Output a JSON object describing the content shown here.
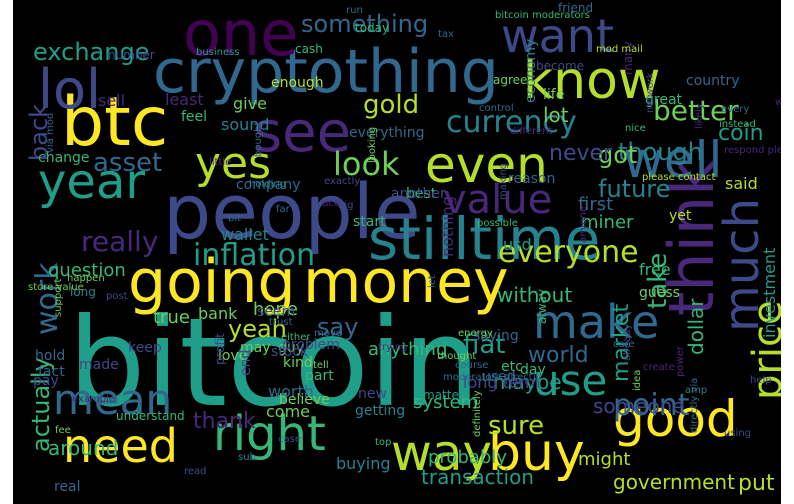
{
  "palette": {
    "yellow": "#fde725",
    "yellowgreen": "#b5de2b",
    "green": "#6ece58",
    "seagreen": "#35b779",
    "teal": "#1f9e89",
    "cyan": "#26828e",
    "steel": "#31688e",
    "indigo": "#3e4989",
    "violet": "#482878",
    "purple": "#440154",
    "background": "#000000"
  },
  "words": [
    {
      "text": "bitcoin",
      "color": "teal"
    },
    {
      "text": "people",
      "color": "indigo"
    },
    {
      "text": "btc",
      "color": "yellow"
    },
    {
      "text": "cryptothing",
      "color": "steel"
    },
    {
      "text": "one",
      "color": "purple"
    },
    {
      "text": "think",
      "color": "violet"
    },
    {
      "text": "going",
      "color": "yellow"
    },
    {
      "text": "money",
      "color": "yellow"
    },
    {
      "text": "stilltime",
      "color": "cyan"
    },
    {
      "text": "lol",
      "color": "indigo"
    },
    {
      "text": "see",
      "color": "violet"
    },
    {
      "text": "know",
      "color": "yellowgreen"
    },
    {
      "text": "year",
      "color": "teal"
    },
    {
      "text": "even",
      "color": "yellowgreen"
    },
    {
      "text": "well",
      "color": "steel"
    },
    {
      "text": "want",
      "color": "indigo"
    },
    {
      "text": "much",
      "color": "indigo"
    },
    {
      "text": "make",
      "color": "steel"
    },
    {
      "text": "good",
      "color": "yellow"
    },
    {
      "text": "need",
      "color": "yellow"
    },
    {
      "text": "buy",
      "color": "yellow"
    },
    {
      "text": "way",
      "color": "yellowgreen"
    },
    {
      "text": "right",
      "color": "seagreen"
    },
    {
      "text": "mean",
      "color": "steel"
    },
    {
      "text": "use",
      "color": "teal"
    },
    {
      "text": "value",
      "color": "violet"
    },
    {
      "text": "yes",
      "color": "yellowgreen"
    },
    {
      "text": "price",
      "color": "yellowgreen"
    },
    {
      "text": "currency",
      "color": "cyan"
    },
    {
      "text": "inflation",
      "color": "teal"
    },
    {
      "text": "look",
      "color": "green"
    },
    {
      "text": "gold",
      "color": "yellowgreen"
    },
    {
      "text": "exchange",
      "color": "teal"
    },
    {
      "text": "something",
      "color": "steel"
    },
    {
      "text": "better",
      "color": "green"
    },
    {
      "text": "though",
      "color": "cyan"
    },
    {
      "text": "coin",
      "color": "teal"
    },
    {
      "text": "future",
      "color": "cyan"
    },
    {
      "text": "got",
      "color": "green"
    },
    {
      "text": "never",
      "color": "indigo"
    },
    {
      "text": "lot",
      "color": "green"
    },
    {
      "text": "really",
      "color": "violet"
    },
    {
      "text": "asset",
      "color": "steel"
    },
    {
      "text": "back",
      "color": "indigo"
    },
    {
      "text": "work",
      "color": "steel"
    },
    {
      "text": "say",
      "color": "steel"
    },
    {
      "text": "everyone",
      "color": "yellowgreen"
    },
    {
      "text": "take",
      "color": "seagreen"
    },
    {
      "text": "market",
      "color": "teal"
    },
    {
      "text": "dollar",
      "color": "seagreen"
    },
    {
      "text": "world",
      "color": "steel"
    },
    {
      "text": "point",
      "color": "steel"
    },
    {
      "text": "sure",
      "color": "yellowgreen"
    },
    {
      "text": "fiat",
      "color": "teal"
    },
    {
      "text": "actually",
      "color": "seagreen"
    },
    {
      "text": "thank",
      "color": "violet"
    },
    {
      "text": "yeah",
      "color": "yellowgreen"
    },
    {
      "text": "someone",
      "color": "indigo"
    },
    {
      "text": "put",
      "color": "yellowgreen"
    },
    {
      "text": "government",
      "color": "yellowgreen"
    },
    {
      "text": "transaction",
      "color": "teal"
    },
    {
      "text": "probably",
      "color": "seagreen"
    },
    {
      "text": "might",
      "color": "yellowgreen"
    },
    {
      "text": "question",
      "color": "seagreen"
    },
    {
      "text": "hope",
      "color": "green"
    },
    {
      "text": "anything",
      "color": "seagreen"
    },
    {
      "text": "maybe",
      "color": "teal"
    },
    {
      "text": "around",
      "color": "seagreen"
    },
    {
      "text": "without",
      "color": "seagreen"
    },
    {
      "text": "true",
      "color": "green"
    },
    {
      "text": "bank",
      "color": "green"
    },
    {
      "text": "said",
      "color": "yellowgreen"
    },
    {
      "text": "first",
      "color": "steel"
    },
    {
      "text": "miner",
      "color": "seagreen"
    },
    {
      "text": "nothing",
      "color": "violet"
    },
    {
      "text": "usd",
      "color": "teal"
    },
    {
      "text": "wallet",
      "color": "cyan"
    },
    {
      "text": "system",
      "color": "seagreen"
    },
    {
      "text": "long term",
      "color": "indigo"
    },
    {
      "text": "investment",
      "color": "teal"
    },
    {
      "text": "free",
      "color": "seagreen"
    },
    {
      "text": "guess",
      "color": "green"
    },
    {
      "text": "buying",
      "color": "cyan"
    },
    {
      "text": "come",
      "color": "green"
    },
    {
      "text": "worth",
      "color": "steel"
    },
    {
      "text": "love",
      "color": "green"
    },
    {
      "text": "yet",
      "color": "yellowgreen"
    },
    {
      "text": "sell",
      "color": "violet"
    },
    {
      "text": "least",
      "color": "violet"
    },
    {
      "text": "give",
      "color": "green"
    },
    {
      "text": "enough",
      "color": "yellowgreen"
    },
    {
      "text": "agree",
      "color": "green"
    },
    {
      "text": "life",
      "color": "green"
    },
    {
      "text": "economy",
      "color": "cyan"
    },
    {
      "text": "great",
      "color": "seagreen"
    },
    {
      "text": "sound",
      "color": "cyan"
    },
    {
      "text": "feel",
      "color": "seagreen"
    },
    {
      "text": "change",
      "color": "seagreen"
    },
    {
      "text": "cash",
      "color": "seagreen"
    },
    {
      "text": "best",
      "color": "seagreen"
    },
    {
      "text": "company",
      "color": "steel"
    },
    {
      "text": "everything",
      "color": "steel"
    },
    {
      "text": "reason",
      "color": "steel"
    },
    {
      "text": "another",
      "color": "indigo"
    },
    {
      "text": "start",
      "color": "seagreen"
    },
    {
      "text": "country",
      "color": "steel"
    },
    {
      "text": "pay",
      "color": "indigo"
    },
    {
      "text": "hold",
      "color": "steel"
    },
    {
      "text": "fact",
      "color": "steel"
    },
    {
      "text": "used",
      "color": "steel"
    },
    {
      "text": "saying",
      "color": "steel"
    },
    {
      "text": "day",
      "color": "seagreen"
    },
    {
      "text": "etc",
      "color": "seagreen"
    },
    {
      "text": "alway",
      "color": "seagreen"
    },
    {
      "text": "part",
      "color": "seagreen"
    },
    {
      "text": "kind",
      "color": "green"
    },
    {
      "text": "guy",
      "color": "green"
    },
    {
      "text": "may",
      "color": "green"
    },
    {
      "text": "seem",
      "color": "indigo"
    },
    {
      "text": "keep",
      "color": "indigo"
    },
    {
      "text": "made",
      "color": "indigo"
    },
    {
      "text": "stock",
      "color": "indigo"
    },
    {
      "text": "end",
      "color": "indigo"
    },
    {
      "text": "problem",
      "color": "indigo"
    },
    {
      "text": "believe",
      "color": "green"
    },
    {
      "text": "understand",
      "color": "seagreen"
    },
    {
      "text": "getting",
      "color": "cyan"
    },
    {
      "text": "new",
      "color": "indigo"
    },
    {
      "text": "real",
      "color": "steel"
    },
    {
      "text": "matter",
      "color": "teal"
    },
    {
      "text": "profit",
      "color": "indigo"
    },
    {
      "text": "long",
      "color": "cyan"
    },
    {
      "text": "number",
      "color": "indigo"
    },
    {
      "text": "become",
      "color": "indigo"
    },
    {
      "text": "many",
      "color": "violet"
    },
    {
      "text": "today",
      "color": "seagreen"
    },
    {
      "text": "run",
      "color": "steel"
    },
    {
      "text": "tax",
      "color": "steel"
    },
    {
      "text": "friend",
      "color": "steel"
    },
    {
      "text": "business",
      "color": "teal"
    },
    {
      "text": "bitcoin moderators",
      "color": "seagreen"
    },
    {
      "text": "mod mail",
      "color": "yellowgreen"
    },
    {
      "text": "every",
      "color": "steel"
    },
    {
      "text": "instead",
      "color": "seagreen"
    },
    {
      "text": "network",
      "color": "indigo"
    },
    {
      "text": "different",
      "color": "violet"
    },
    {
      "text": "respond please",
      "color": "violet"
    },
    {
      "text": "please contact",
      "color": "yellowgreen"
    },
    {
      "text": "likely",
      "color": "violet"
    },
    {
      "text": "nice",
      "color": "seagreen"
    },
    {
      "text": "via mod",
      "color": "steel"
    },
    {
      "text": "little",
      "color": "violet"
    },
    {
      "text": "holding",
      "color": "cyan"
    },
    {
      "text": "bought",
      "color": "steel"
    },
    {
      "text": "dca",
      "color": "violet"
    },
    {
      "text": "looking",
      "color": "green"
    },
    {
      "text": "control",
      "color": "steel"
    },
    {
      "text": "making",
      "color": "indigo"
    },
    {
      "text": "exactly",
      "color": "indigo"
    },
    {
      "text": "big",
      "color": "indigo"
    },
    {
      "text": "store value",
      "color": "green"
    },
    {
      "text": "bit",
      "color": "steel"
    },
    {
      "text": "far",
      "color": "steel"
    },
    {
      "text": "possible",
      "color": "seagreen"
    },
    {
      "text": "let",
      "color": "steel"
    },
    {
      "text": "anyone",
      "color": "violet"
    },
    {
      "text": "already",
      "color": "indigo"
    },
    {
      "text": "happen",
      "color": "green"
    },
    {
      "text": "post",
      "color": "indigo"
    },
    {
      "text": "trust",
      "color": "steel"
    },
    {
      "text": "energy",
      "color": "green"
    },
    {
      "text": "care",
      "color": "steel"
    },
    {
      "text": "either",
      "color": "seagreen"
    },
    {
      "text": "tell",
      "color": "green"
    },
    {
      "text": "thought",
      "color": "green"
    },
    {
      "text": "idea",
      "color": "green"
    },
    {
      "text": "move",
      "color": "steel"
    },
    {
      "text": "trying",
      "color": "violet"
    },
    {
      "text": "course",
      "color": "steel"
    },
    {
      "text": "create",
      "color": "violet"
    },
    {
      "text": "support",
      "color": "green"
    },
    {
      "text": "moderators directly",
      "color": "steel"
    },
    {
      "text": "man",
      "color": "indigo"
    },
    {
      "text": "amp",
      "color": "cyan"
    },
    {
      "text": "power",
      "color": "violet"
    },
    {
      "text": "help",
      "color": "indigo"
    },
    {
      "text": "directly via",
      "color": "steel"
    },
    {
      "text": "using",
      "color": "indigo"
    },
    {
      "text": "example",
      "color": "violet"
    },
    {
      "text": "top",
      "color": "seagreen"
    },
    {
      "text": "fee",
      "color": "green"
    },
    {
      "text": "case",
      "color": "indigo"
    },
    {
      "text": "sub",
      "color": "cyan"
    },
    {
      "text": "definitely",
      "color": "green"
    },
    {
      "text": "read",
      "color": "indigo"
    },
    {
      "text": "what",
      "color": "violet"
    }
  ]
}
